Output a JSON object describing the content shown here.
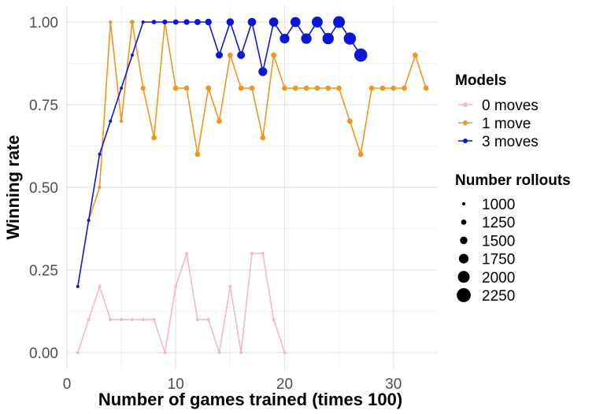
{
  "chart_data": {
    "type": "line",
    "xlabel": "Number of games trained (times 100)",
    "ylabel": "Winning rate",
    "xlim": [
      0,
      34
    ],
    "ylim": [
      -0.05,
      1.05
    ],
    "x_ticks": [
      0,
      10,
      20,
      30
    ],
    "x_tick_labels": [
      "0",
      "10",
      "20",
      "30"
    ],
    "y_ticks": [
      0,
      0.25,
      0.5,
      0.75,
      1.0
    ],
    "y_tick_labels": [
      "0.00",
      "0.25",
      "0.50",
      "0.75",
      "1.00"
    ],
    "grid": true,
    "legend_position": "right",
    "legend_color_title": "Models",
    "legend_size_title": "Number rollouts",
    "series": [
      {
        "name": "0 moves",
        "color": "#f4b6c9",
        "points": [
          {
            "x": 1,
            "y": 0.0,
            "rollouts": 1000
          },
          {
            "x": 2,
            "y": 0.1,
            "rollouts": 1000
          },
          {
            "x": 3,
            "y": 0.2,
            "rollouts": 1000
          },
          {
            "x": 4,
            "y": 0.1,
            "rollouts": 1000
          },
          {
            "x": 5,
            "y": 0.1,
            "rollouts": 1000
          },
          {
            "x": 6,
            "y": 0.1,
            "rollouts": 1000
          },
          {
            "x": 7,
            "y": 0.1,
            "rollouts": 1000
          },
          {
            "x": 8,
            "y": 0.1,
            "rollouts": 1000
          },
          {
            "x": 9,
            "y": 0.0,
            "rollouts": 1000
          },
          {
            "x": 10,
            "y": 0.2,
            "rollouts": 1000
          },
          {
            "x": 11,
            "y": 0.3,
            "rollouts": 1000
          },
          {
            "x": 12,
            "y": 0.1,
            "rollouts": 1000
          },
          {
            "x": 13,
            "y": 0.1,
            "rollouts": 1000
          },
          {
            "x": 14,
            "y": 0.0,
            "rollouts": 1000
          },
          {
            "x": 15,
            "y": 0.2,
            "rollouts": 1000
          },
          {
            "x": 16,
            "y": 0.0,
            "rollouts": 1000
          },
          {
            "x": 17,
            "y": 0.3,
            "rollouts": 1000
          },
          {
            "x": 18,
            "y": 0.3,
            "rollouts": 1000
          },
          {
            "x": 19,
            "y": 0.1,
            "rollouts": 1000
          },
          {
            "x": 20,
            "y": 0.0,
            "rollouts": 1000
          }
        ]
      },
      {
        "name": "1 move",
        "color": "#f0961e",
        "points": [
          {
            "x": 2,
            "y": 0.4,
            "rollouts": 1000
          },
          {
            "x": 3,
            "y": 0.5,
            "rollouts": 1000
          },
          {
            "x": 4,
            "y": 1.0,
            "rollouts": 1000
          },
          {
            "x": 5,
            "y": 0.7,
            "rollouts": 1050
          },
          {
            "x": 6,
            "y": 1.0,
            "rollouts": 1150
          },
          {
            "x": 7,
            "y": 0.8,
            "rollouts": 1200
          },
          {
            "x": 8,
            "y": 0.65,
            "rollouts": 1250
          },
          {
            "x": 9,
            "y": 1.0,
            "rollouts": 1000
          },
          {
            "x": 10,
            "y": 0.8,
            "rollouts": 1250
          },
          {
            "x": 11,
            "y": 0.8,
            "rollouts": 1250
          },
          {
            "x": 12,
            "y": 0.6,
            "rollouts": 1250
          },
          {
            "x": 13,
            "y": 0.8,
            "rollouts": 1250
          },
          {
            "x": 14,
            "y": 0.7,
            "rollouts": 1250
          },
          {
            "x": 15,
            "y": 0.9,
            "rollouts": 1250
          },
          {
            "x": 16,
            "y": 0.8,
            "rollouts": 1250
          },
          {
            "x": 17,
            "y": 0.8,
            "rollouts": 1250
          },
          {
            "x": 18,
            "y": 0.65,
            "rollouts": 1250
          },
          {
            "x": 19,
            "y": 0.9,
            "rollouts": 1250
          },
          {
            "x": 20,
            "y": 0.8,
            "rollouts": 1250
          },
          {
            "x": 21,
            "y": 0.8,
            "rollouts": 1250
          },
          {
            "x": 22,
            "y": 0.8,
            "rollouts": 1250
          },
          {
            "x": 23,
            "y": 0.8,
            "rollouts": 1250
          },
          {
            "x": 24,
            "y": 0.8,
            "rollouts": 1250
          },
          {
            "x": 25,
            "y": 0.8,
            "rollouts": 1250
          },
          {
            "x": 26,
            "y": 0.7,
            "rollouts": 1250
          },
          {
            "x": 27,
            "y": 0.6,
            "rollouts": 1250
          },
          {
            "x": 28,
            "y": 0.8,
            "rollouts": 1250
          },
          {
            "x": 29,
            "y": 0.8,
            "rollouts": 1250
          },
          {
            "x": 30,
            "y": 0.8,
            "rollouts": 1250
          },
          {
            "x": 31,
            "y": 0.8,
            "rollouts": 1250
          },
          {
            "x": 32,
            "y": 0.9,
            "rollouts": 1250
          },
          {
            "x": 33,
            "y": 0.8,
            "rollouts": 1250
          }
        ]
      },
      {
        "name": "3 moves",
        "color": "#0a18d6",
        "points": [
          {
            "x": 1,
            "y": 0.2,
            "rollouts": 1000
          },
          {
            "x": 2,
            "y": 0.4,
            "rollouts": 1000
          },
          {
            "x": 3,
            "y": 0.6,
            "rollouts": 1000
          },
          {
            "x": 4,
            "y": 0.7,
            "rollouts": 1000
          },
          {
            "x": 5,
            "y": 0.8,
            "rollouts": 1000
          },
          {
            "x": 6,
            "y": 0.9,
            "rollouts": 1000
          },
          {
            "x": 7,
            "y": 1.0,
            "rollouts": 1000
          },
          {
            "x": 8,
            "y": 1.0,
            "rollouts": 1150
          },
          {
            "x": 9,
            "y": 1.0,
            "rollouts": 1200
          },
          {
            "x": 10,
            "y": 1.0,
            "rollouts": 1250
          },
          {
            "x": 11,
            "y": 1.0,
            "rollouts": 1300
          },
          {
            "x": 12,
            "y": 1.0,
            "rollouts": 1350
          },
          {
            "x": 13,
            "y": 1.0,
            "rollouts": 1400
          },
          {
            "x": 14,
            "y": 0.9,
            "rollouts": 1450
          },
          {
            "x": 15,
            "y": 1.0,
            "rollouts": 1500
          },
          {
            "x": 16,
            "y": 0.9,
            "rollouts": 1550
          },
          {
            "x": 17,
            "y": 1.0,
            "rollouts": 1600
          },
          {
            "x": 18,
            "y": 0.85,
            "rollouts": 1650
          },
          {
            "x": 19,
            "y": 1.0,
            "rollouts": 1700
          },
          {
            "x": 20,
            "y": 0.95,
            "rollouts": 1750
          },
          {
            "x": 21,
            "y": 1.0,
            "rollouts": 1800
          },
          {
            "x": 22,
            "y": 0.95,
            "rollouts": 1850
          },
          {
            "x": 23,
            "y": 1.0,
            "rollouts": 1900
          },
          {
            "x": 24,
            "y": 0.95,
            "rollouts": 1950
          },
          {
            "x": 25,
            "y": 1.0,
            "rollouts": 2000
          },
          {
            "x": 26,
            "y": 0.95,
            "rollouts": 2050
          },
          {
            "x": 27,
            "y": 0.9,
            "rollouts": 2150
          }
        ]
      }
    ],
    "size_legend": [
      1000,
      1250,
      1500,
      1750,
      2000,
      2250
    ],
    "size_legend_labels": [
      "1000",
      "1250",
      "1500",
      "1750",
      "2000",
      "2250"
    ]
  }
}
